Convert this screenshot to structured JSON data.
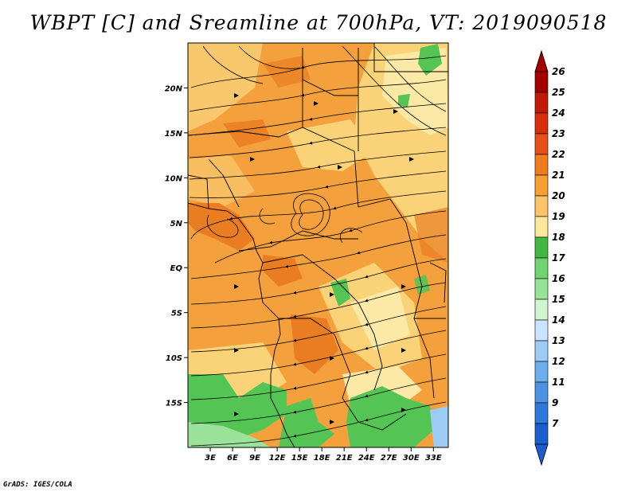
{
  "title": "WBPT [C] and Sreamline at 700hPa, VT: 2019090518",
  "credit": "GrADS: IGES/COLA",
  "map": {
    "lon_range": [
      0,
      35
    ],
    "lat_range": [
      -20,
      25
    ],
    "lat_ticks": [
      {
        "label": "20N",
        "lat": 20
      },
      {
        "label": "15N",
        "lat": 15
      },
      {
        "label": "10N",
        "lat": 10
      },
      {
        "label": "5N",
        "lat": 5
      },
      {
        "label": "EQ",
        "lat": 0
      },
      {
        "label": "5S",
        "lat": -5
      },
      {
        "label": "10S",
        "lat": -10
      },
      {
        "label": "15S",
        "lat": -15
      }
    ],
    "lon_ticks": [
      {
        "label": "3E",
        "lon": 3
      },
      {
        "label": "6E",
        "lon": 6
      },
      {
        "label": "9E",
        "lon": 9
      },
      {
        "label": "12E",
        "lon": 12
      },
      {
        "label": "15E",
        "lon": 15
      },
      {
        "label": "18E",
        "lon": 18
      },
      {
        "label": "21E",
        "lon": 21
      },
      {
        "label": "24E",
        "lon": 24
      },
      {
        "label": "27E",
        "lon": 27
      },
      {
        "label": "30E",
        "lon": 30
      },
      {
        "label": "33E",
        "lon": 33
      }
    ]
  },
  "colorbar": {
    "levels": [
      "26",
      "25",
      "24",
      "23",
      "22",
      "21",
      "20",
      "19",
      "18",
      "17",
      "16",
      "15",
      "14",
      "13",
      "12",
      "11",
      "9",
      "7"
    ],
    "colors": [
      "#a50000",
      "#c01a04",
      "#d8300a",
      "#e8501a",
      "#f07a1e",
      "#f5a030",
      "#fac466",
      "#fde89a",
      "#41b941",
      "#6fd36f",
      "#96e396",
      "#d0f5d0",
      "#c9e4ff",
      "#9cccf5",
      "#6aaeee",
      "#4a94e3",
      "#2d78da",
      "#1a5ed0"
    ],
    "top_color": "#a50000",
    "bottom_color": "#1a5ed0"
  },
  "colors": {
    "base": "#f4a03c",
    "warm": "#ea7d22",
    "light": "#fad278",
    "pale": "#fde9a6",
    "green": "#54c454",
    "lightgreen": "#9be39b",
    "blue": "#9cccf5"
  }
}
